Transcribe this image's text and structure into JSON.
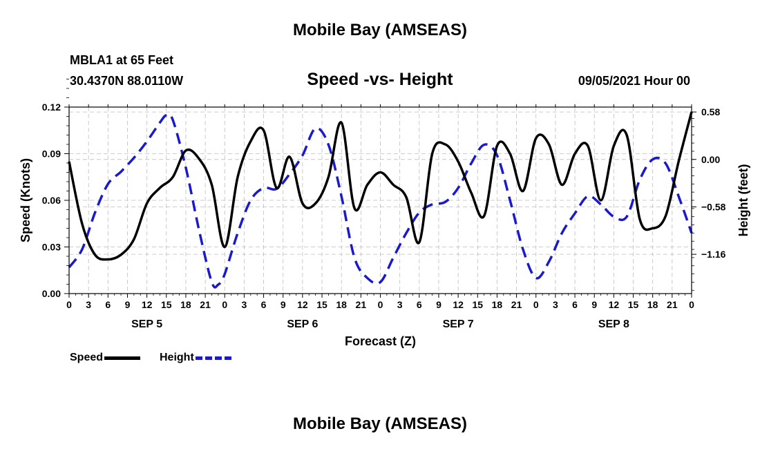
{
  "header": {
    "title": "Mobile Bay (AMSEAS)",
    "station": "MBLA1 at 65 Feet",
    "coords": "30.4370N  88.0110W",
    "datetime": "09/05/2021 Hour 00"
  },
  "footer": {
    "title": "Mobile Bay (AMSEAS)"
  },
  "chart_data": {
    "type": "line",
    "title": "Speed -vs- Height",
    "xlabel": "Forecast (Z)",
    "ylabel": "Speed (Knots)",
    "y2label": "Height (feet)",
    "xlim": [
      0,
      96
    ],
    "ylim": [
      0,
      0.12
    ],
    "y2lim": [
      -1.64,
      0.64
    ],
    "x_ticks": [
      0,
      3,
      6,
      9,
      12,
      15,
      18,
      21,
      24,
      27,
      30,
      33,
      36,
      39,
      42,
      45,
      48,
      51,
      54,
      57,
      60,
      63,
      66,
      69,
      72,
      75,
      78,
      81,
      84,
      87,
      90,
      93,
      96
    ],
    "x_tick_labels": [
      "0",
      "3",
      "6",
      "9",
      "12",
      "15",
      "18",
      "21",
      "0",
      "3",
      "6",
      "9",
      "12",
      "15",
      "18",
      "21",
      "0",
      "3",
      "6",
      "9",
      "12",
      "15",
      "18",
      "21",
      "0",
      "3",
      "6",
      "9",
      "12",
      "15",
      "18",
      "21",
      "0"
    ],
    "day_labels": [
      {
        "x": 12,
        "label": "SEP 5"
      },
      {
        "x": 36,
        "label": "SEP 6"
      },
      {
        "x": 60,
        "label": "SEP 7"
      },
      {
        "x": 84,
        "label": "SEP 8"
      }
    ],
    "y_ticks": [
      0,
      0.03,
      0.06,
      0.09,
      0.12
    ],
    "y_tick_labels": [
      "0.00",
      "0.03",
      "0.06",
      "0.09",
      "0.12"
    ],
    "y2_ticks": [
      0.58,
      0.0,
      -0.58,
      -1.16
    ],
    "y2_tick_labels": [
      "0.58",
      "0.00",
      "−0.58",
      "−1.16"
    ],
    "legend": [
      {
        "name": "Speed",
        "color": "#000000",
        "style": "solid"
      },
      {
        "name": "Height",
        "color": "#1a1acc",
        "style": "dashed"
      }
    ],
    "series": [
      {
        "name": "Speed",
        "axis": "left",
        "color": "#000000",
        "x": [
          0,
          2,
          4,
          6,
          8,
          10,
          12,
          14,
          16,
          18,
          20,
          22,
          24,
          26,
          28,
          30,
          32,
          34,
          36,
          38,
          40,
          42,
          44,
          46,
          48,
          50,
          52,
          54,
          56,
          58,
          60,
          62,
          64,
          66,
          68,
          70,
          72,
          74,
          76,
          78,
          80,
          82,
          84,
          86,
          88,
          90,
          92,
          94,
          96
        ],
        "y": [
          0.085,
          0.045,
          0.025,
          0.022,
          0.025,
          0.035,
          0.058,
          0.068,
          0.075,
          0.092,
          0.087,
          0.07,
          0.03,
          0.075,
          0.098,
          0.105,
          0.068,
          0.088,
          0.058,
          0.058,
          0.075,
          0.11,
          0.055,
          0.07,
          0.078,
          0.07,
          0.062,
          0.033,
          0.09,
          0.096,
          0.085,
          0.065,
          0.05,
          0.095,
          0.09,
          0.066,
          0.1,
          0.096,
          0.07,
          0.09,
          0.095,
          0.06,
          0.095,
          0.102,
          0.048,
          0.042,
          0.05,
          0.085,
          0.117
        ]
      },
      {
        "name": "Height",
        "axis": "right",
        "color": "#1a1acc",
        "x": [
          0,
          2,
          4,
          6,
          8,
          10,
          12,
          14,
          15,
          16,
          18,
          20,
          22,
          23,
          24,
          26,
          28,
          30,
          32,
          34,
          36,
          38,
          40,
          42,
          44,
          46,
          48,
          50,
          52,
          54,
          56,
          58,
          60,
          62,
          64,
          66,
          68,
          70,
          72,
          74,
          76,
          78,
          80,
          82,
          84,
          86,
          88,
          90,
          92,
          94,
          96
        ],
        "y": [
          -1.32,
          -1.1,
          -0.65,
          -0.3,
          -0.15,
          0.02,
          0.22,
          0.45,
          0.54,
          0.48,
          -0.1,
          -0.85,
          -1.5,
          -1.53,
          -1.4,
          -0.9,
          -0.5,
          -0.35,
          -0.36,
          -0.18,
          0.05,
          0.38,
          0.18,
          -0.45,
          -1.2,
          -1.45,
          -1.5,
          -1.2,
          -0.9,
          -0.65,
          -0.55,
          -0.52,
          -0.35,
          -0.05,
          0.18,
          0.05,
          -0.5,
          -1.1,
          -1.45,
          -1.25,
          -0.9,
          -0.66,
          -0.45,
          -0.55,
          -0.7,
          -0.7,
          -0.25,
          0.0,
          -0.05,
          -0.45,
          -0.9
        ]
      }
    ]
  }
}
